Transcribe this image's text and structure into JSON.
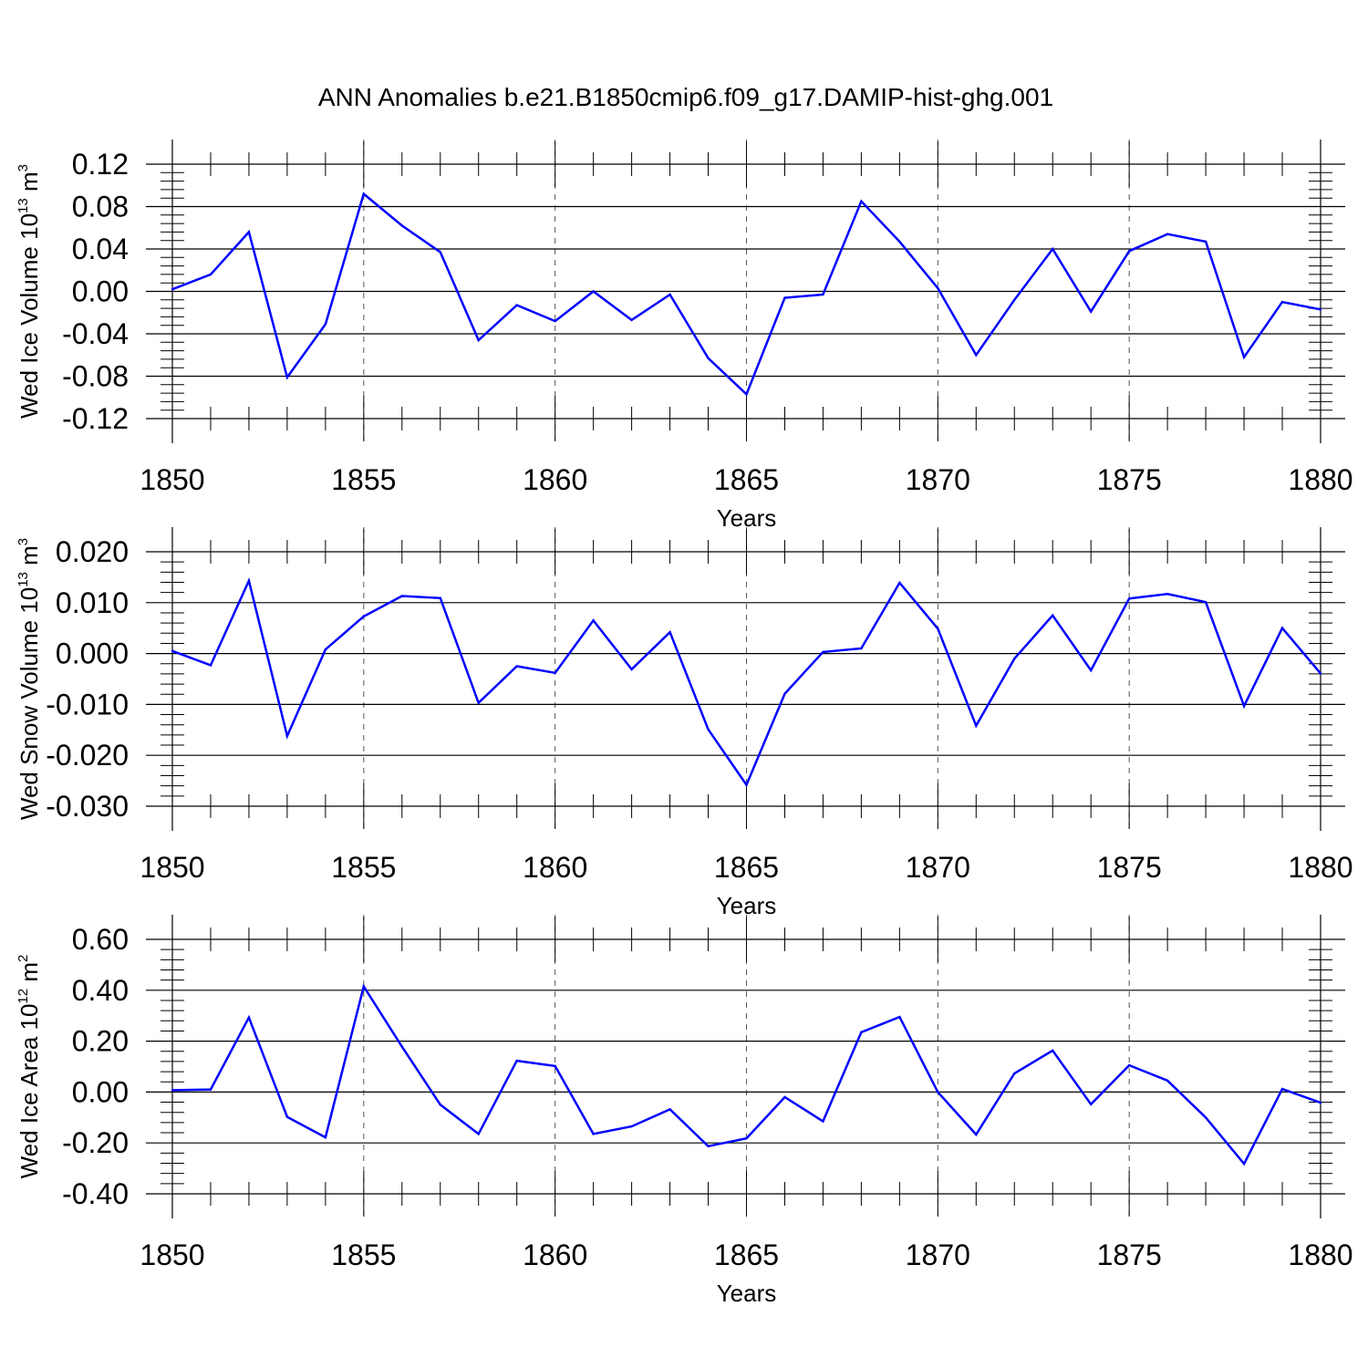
{
  "figure": {
    "title": "ANN Anomalies b.e21.B1850cmip6.f09_g17.DAMIP-hist-ghg.001",
    "line_color": "#0000ff"
  },
  "chart_data": [
    {
      "type": "line",
      "xlabel": "Years",
      "ylabel": {
        "base": "Wed Ice Volume 10",
        "exp": "13",
        "unit": " m",
        "unit_exp": "3"
      },
      "xlim": [
        1850,
        1880
      ],
      "ylim": [
        -0.12,
        0.12
      ],
      "grid": "dashed vertical at major x ticks",
      "x_ticks": [
        1850,
        1855,
        1860,
        1865,
        1870,
        1875,
        1880
      ],
      "x_tick_labels": [
        "1850",
        "1855",
        "1860",
        "1865",
        "1870",
        "1875",
        "1880"
      ],
      "y_ticks": [
        -0.12,
        -0.08,
        -0.04,
        0.0,
        0.04,
        0.08,
        0.12
      ],
      "y_tick_labels": [
        "-0.12",
        "-0.08",
        "-0.04",
        "0.00",
        "0.04",
        "0.08",
        "0.12"
      ],
      "x": [
        1850,
        1851,
        1852,
        1853,
        1854,
        1855,
        1856,
        1857,
        1858,
        1859,
        1860,
        1861,
        1862,
        1863,
        1864,
        1865,
        1866,
        1867,
        1868,
        1869,
        1870,
        1871,
        1872,
        1873,
        1874,
        1875,
        1876,
        1877,
        1878,
        1879,
        1880
      ],
      "series": [
        {
          "values": [
            0.002,
            0.016,
            0.056,
            -0.081,
            -0.031,
            0.092,
            0.062,
            0.037,
            -0.046,
            -0.013,
            -0.028,
            0.0,
            -0.027,
            -0.003,
            -0.063,
            -0.097,
            -0.006,
            -0.003,
            0.085,
            0.047,
            0.003,
            -0.06,
            -0.008,
            0.04,
            -0.019,
            0.038,
            0.054,
            0.047,
            -0.062,
            -0.01,
            -0.017
          ]
        }
      ]
    },
    {
      "type": "line",
      "xlabel": "Years",
      "ylabel": {
        "base": "Wed Snow Volume 10",
        "exp": "13",
        "unit": " m",
        "unit_exp": "3"
      },
      "xlim": [
        1850,
        1880
      ],
      "ylim": [
        -0.03,
        0.02
      ],
      "grid": "dashed vertical at major x ticks",
      "x_ticks": [
        1850,
        1855,
        1860,
        1865,
        1870,
        1875,
        1880
      ],
      "x_tick_labels": [
        "1850",
        "1855",
        "1860",
        "1865",
        "1870",
        "1875",
        "1880"
      ],
      "y_ticks": [
        -0.03,
        -0.02,
        -0.01,
        0.0,
        0.01,
        0.02
      ],
      "y_tick_labels": [
        "-0.030",
        "-0.020",
        "-0.010",
        "0.000",
        "0.010",
        "0.020"
      ],
      "x": [
        1850,
        1851,
        1852,
        1853,
        1854,
        1855,
        1856,
        1857,
        1858,
        1859,
        1860,
        1861,
        1862,
        1863,
        1864,
        1865,
        1866,
        1867,
        1868,
        1869,
        1870,
        1871,
        1872,
        1873,
        1874,
        1875,
        1876,
        1877,
        1878,
        1879,
        1880
      ],
      "series": [
        {
          "values": [
            0.0005,
            -0.0023,
            0.0143,
            -0.0162,
            0.0008,
            0.0073,
            0.0113,
            0.0109,
            -0.0097,
            -0.0025,
            -0.0038,
            0.0065,
            -0.0031,
            0.0042,
            -0.0149,
            -0.0258,
            -0.0079,
            0.0003,
            0.001,
            0.0139,
            0.0049,
            -0.0142,
            -0.001,
            0.0075,
            -0.0033,
            0.0108,
            0.0117,
            0.0101,
            -0.0103,
            0.005,
            -0.0039
          ]
        }
      ]
    },
    {
      "type": "line",
      "xlabel": "Years",
      "ylabel": {
        "base": "Wed Ice Area 10",
        "exp": "12",
        "unit": " m",
        "unit_exp": "2"
      },
      "xlim": [
        1850,
        1880
      ],
      "ylim": [
        -0.4,
        0.6
      ],
      "grid": "dashed vertical at major x ticks",
      "x_ticks": [
        1850,
        1855,
        1860,
        1865,
        1870,
        1875,
        1880
      ],
      "x_tick_labels": [
        "1850",
        "1855",
        "1860",
        "1865",
        "1870",
        "1875",
        "1880"
      ],
      "y_ticks": [
        -0.4,
        -0.2,
        0.0,
        0.2,
        0.4,
        0.6
      ],
      "y_tick_labels": [
        "-0.40",
        "-0.20",
        "0.00",
        "0.20",
        "0.40",
        "0.60"
      ],
      "x": [
        1850,
        1851,
        1852,
        1853,
        1854,
        1855,
        1856,
        1857,
        1858,
        1859,
        1860,
        1861,
        1862,
        1863,
        1864,
        1865,
        1866,
        1867,
        1868,
        1869,
        1870,
        1871,
        1872,
        1873,
        1874,
        1875,
        1876,
        1877,
        1878,
        1879,
        1880
      ],
      "series": [
        {
          "values": [
            0.007,
            0.01,
            0.293,
            -0.098,
            -0.178,
            0.415,
            0.178,
            -0.05,
            -0.165,
            0.123,
            0.102,
            -0.165,
            -0.135,
            -0.068,
            -0.213,
            -0.182,
            -0.02,
            -0.115,
            0.235,
            0.295,
            0.0,
            -0.167,
            0.073,
            0.163,
            -0.048,
            0.105,
            0.045,
            -0.1,
            -0.282,
            0.012,
            -0.042
          ]
        }
      ]
    }
  ]
}
